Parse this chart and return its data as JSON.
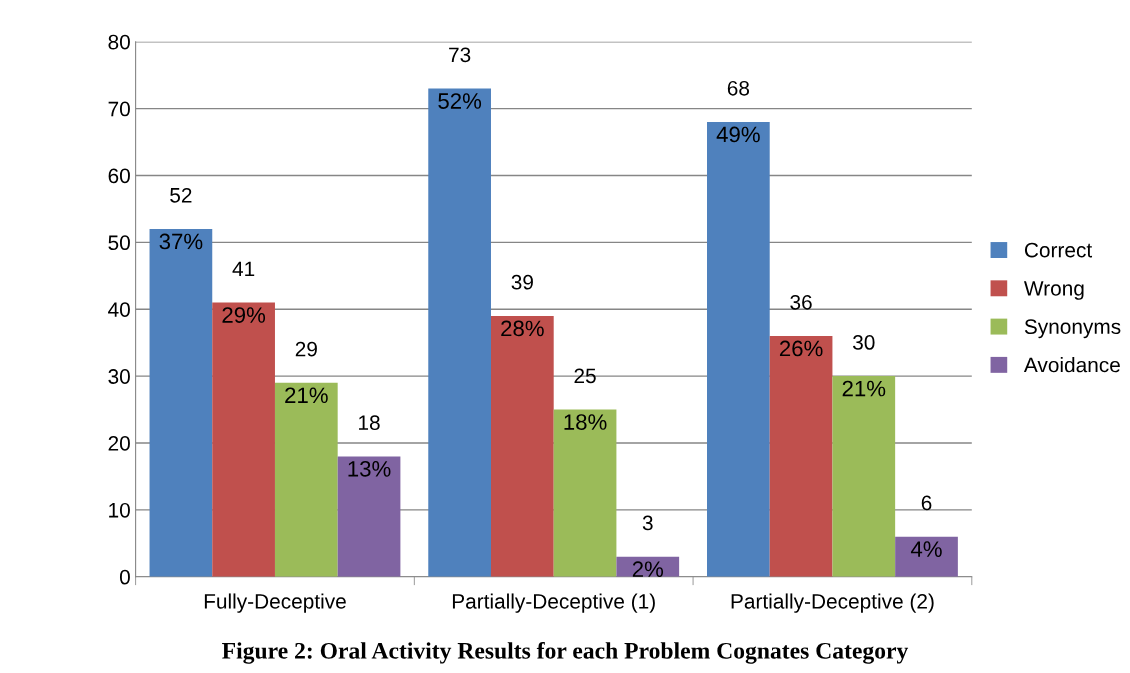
{
  "chart_data": {
    "type": "bar",
    "categories": [
      "Fully-Deceptive",
      "Partially-Deceptive (1)",
      "Partially-Deceptive (2)"
    ],
    "series": [
      {
        "name": "Correct",
        "color": "#4f81bd",
        "values": [
          52,
          73,
          68
        ]
      },
      {
        "name": "Wrong",
        "color": "#c0504d",
        "values": [
          41,
          39,
          36
        ]
      },
      {
        "name": "Synonyms",
        "color": "#9bbb59",
        "values": [
          29,
          25,
          30
        ]
      },
      {
        "name": "Avoidance",
        "color": "#8064a2",
        "values": [
          18,
          3,
          6
        ]
      }
    ],
    "ylim": [
      0,
      80
    ],
    "yticks": [
      0,
      10,
      20,
      30,
      40,
      50,
      60,
      70,
      80
    ],
    "grid": "y",
    "legend": "right",
    "data_labels": true,
    "annotations": [
      "37%",
      "52%",
      "49%",
      "29%",
      "28%",
      "26%",
      "21%",
      "18%",
      "21%",
      "13%",
      "2%",
      "4%",
      "Figure 2: Oral Activity Results for each Problem Cognates Category"
    ]
  }
}
